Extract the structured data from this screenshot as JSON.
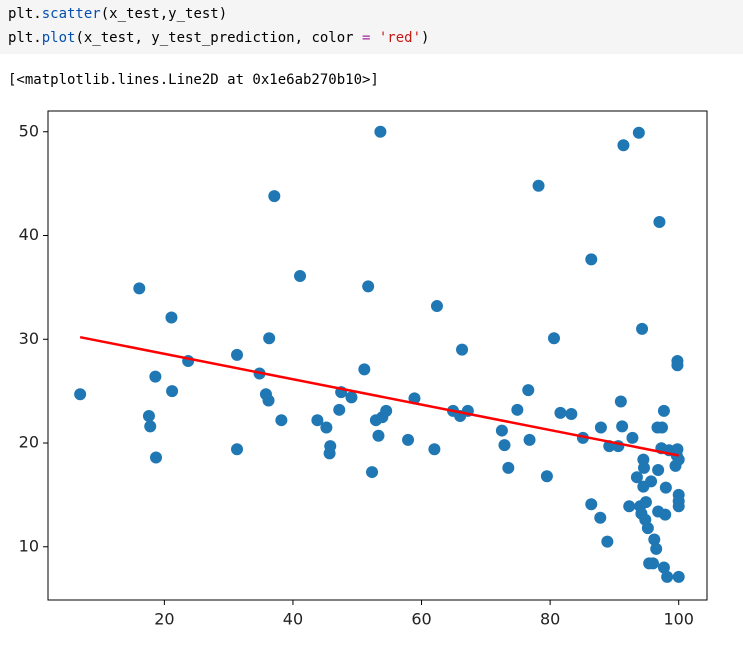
{
  "code": {
    "lines": [
      [
        "plt.",
        "scatter",
        "(x_test,y_test)"
      ],
      [
        "plt.",
        "plot",
        "(x_test, y_test_prediction, color ",
        "=",
        " 'red'",
        ")"
      ]
    ]
  },
  "output": {
    "text": "[<matplotlib.lines.Line2D at 0x1e6ab270b10>]"
  },
  "chart_data": {
    "type": "scatter",
    "xlim": [
      1.9,
      104.4
    ],
    "ylim": [
      4.87,
      52.0
    ],
    "xticks": [
      20,
      40,
      60,
      80,
      100
    ],
    "yticks": [
      10,
      20,
      30,
      40,
      50
    ],
    "series": [
      {
        "type": "scatter",
        "color": "#1f77b4",
        "x": [
          6.9,
          16.1,
          17.6,
          17.8,
          18.6,
          18.7,
          21.1,
          21.2,
          23.7,
          31.3,
          31.3,
          34.8,
          35.8,
          36.2,
          36.3,
          37.1,
          38.2,
          41.1,
          43.8,
          45.2,
          45.8,
          45.7,
          47.2,
          47.5,
          49.1,
          51.1,
          51.7,
          52.3,
          52.9,
          53.3,
          53.6,
          53.9,
          54.5,
          57.9,
          58.9,
          62.0,
          62.4,
          64.9,
          66.0,
          66.3,
          67.2,
          72.5,
          72.9,
          73.5,
          74.9,
          76.6,
          76.8,
          78.2,
          79.5,
          80.6,
          81.6,
          83.3,
          85.1,
          86.4,
          86.4,
          87.8,
          87.9,
          88.9,
          89.2,
          90.6,
          91.0,
          91.2,
          91.4,
          92.3,
          92.8,
          93.5,
          93.8,
          94.0,
          94.2,
          94.3,
          94.5,
          94.5,
          94.6,
          94.8,
          94.9,
          95.2,
          95.4,
          95.7,
          96.0,
          96.2,
          96.5,
          96.7,
          96.8,
          96.8,
          97.0,
          97.3,
          97.4,
          97.7,
          97.7,
          97.9,
          98.0,
          98.2,
          98.5,
          99.5,
          99.7,
          99.8,
          99.8,
          99.8,
          100,
          100,
          100,
          100,
          100
        ],
        "values": [
          24.7,
          34.9,
          22.6,
          21.6,
          26.4,
          18.6,
          32.1,
          25.0,
          27.9,
          28.5,
          19.4,
          26.7,
          24.7,
          24.1,
          30.1,
          43.8,
          22.2,
          36.1,
          22.2,
          21.5,
          19.7,
          19.0,
          23.2,
          24.9,
          24.4,
          27.1,
          35.1,
          17.2,
          22.2,
          20.7,
          50.0,
          22.5,
          23.1,
          20.3,
          24.3,
          19.4,
          33.2,
          23.1,
          22.6,
          29.0,
          23.1,
          21.2,
          19.8,
          17.6,
          23.2,
          25.1,
          20.3,
          44.8,
          16.8,
          30.1,
          22.9,
          22.8,
          20.5,
          14.1,
          37.7,
          12.8,
          21.5,
          10.5,
          19.7,
          19.7,
          24.0,
          21.6,
          48.7,
          13.9,
          20.5,
          16.7,
          49.9,
          13.9,
          13.2,
          31.0,
          18.4,
          15.8,
          17.6,
          12.6,
          14.3,
          11.8,
          8.4,
          16.3,
          8.4,
          10.7,
          9.8,
          21.5,
          17.4,
          13.4,
          41.3,
          19.5,
          21.5,
          23.1,
          8.0,
          13.1,
          15.7,
          7.1,
          19.3,
          17.8,
          18.8,
          27.9,
          27.5,
          19.4,
          18.4,
          15.0,
          13.9,
          7.1,
          14.4
        ]
      },
      {
        "type": "line",
        "color": "red",
        "x": [
          6.9,
          100
        ],
        "values": [
          30.2,
          18.8
        ]
      }
    ]
  }
}
